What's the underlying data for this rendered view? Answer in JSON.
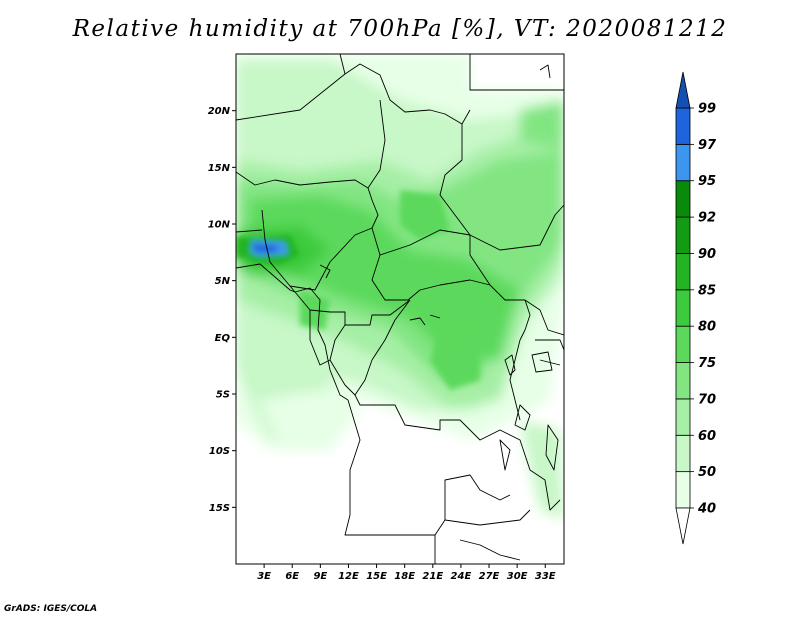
{
  "title": "Relative humidity at 700hPa [%], VT: 2020081212",
  "credit": "GrADS: IGES/COLA",
  "map": {
    "lon_range": [
      0,
      35
    ],
    "lat_range": [
      -20,
      25
    ],
    "lat_ticks": [
      {
        "value": 20,
        "label": "20N"
      },
      {
        "value": 15,
        "label": "15N"
      },
      {
        "value": 10,
        "label": "10N"
      },
      {
        "value": 5,
        "label": "5N"
      },
      {
        "value": 0,
        "label": "EQ"
      },
      {
        "value": -5,
        "label": "5S"
      },
      {
        "value": -10,
        "label": "10S"
      },
      {
        "value": -15,
        "label": "15S"
      }
    ],
    "lon_ticks": [
      {
        "value": 3,
        "label": "3E"
      },
      {
        "value": 6,
        "label": "6E"
      },
      {
        "value": 9,
        "label": "9E"
      },
      {
        "value": 12,
        "label": "12E"
      },
      {
        "value": 15,
        "label": "15E"
      },
      {
        "value": 18,
        "label": "18E"
      },
      {
        "value": 21,
        "label": "21E"
      },
      {
        "value": 24,
        "label": "24E"
      },
      {
        "value": 27,
        "label": "27E"
      },
      {
        "value": 30,
        "label": "30E"
      },
      {
        "value": 33,
        "label": "33E"
      }
    ]
  },
  "colorbar": {
    "levels": [
      "40",
      "50",
      "60",
      "70",
      "75",
      "80",
      "85",
      "90",
      "92",
      "95",
      "97",
      "99"
    ],
    "colors": [
      "#ffffff",
      "#e6ffe6",
      "#c8f7c8",
      "#a6efa6",
      "#82e582",
      "#5cd95c",
      "#3ccb3c",
      "#22b422",
      "#139c13",
      "#0a8a0a",
      "#3c96f0",
      "#1e64dc",
      "#1450b4"
    ]
  }
}
